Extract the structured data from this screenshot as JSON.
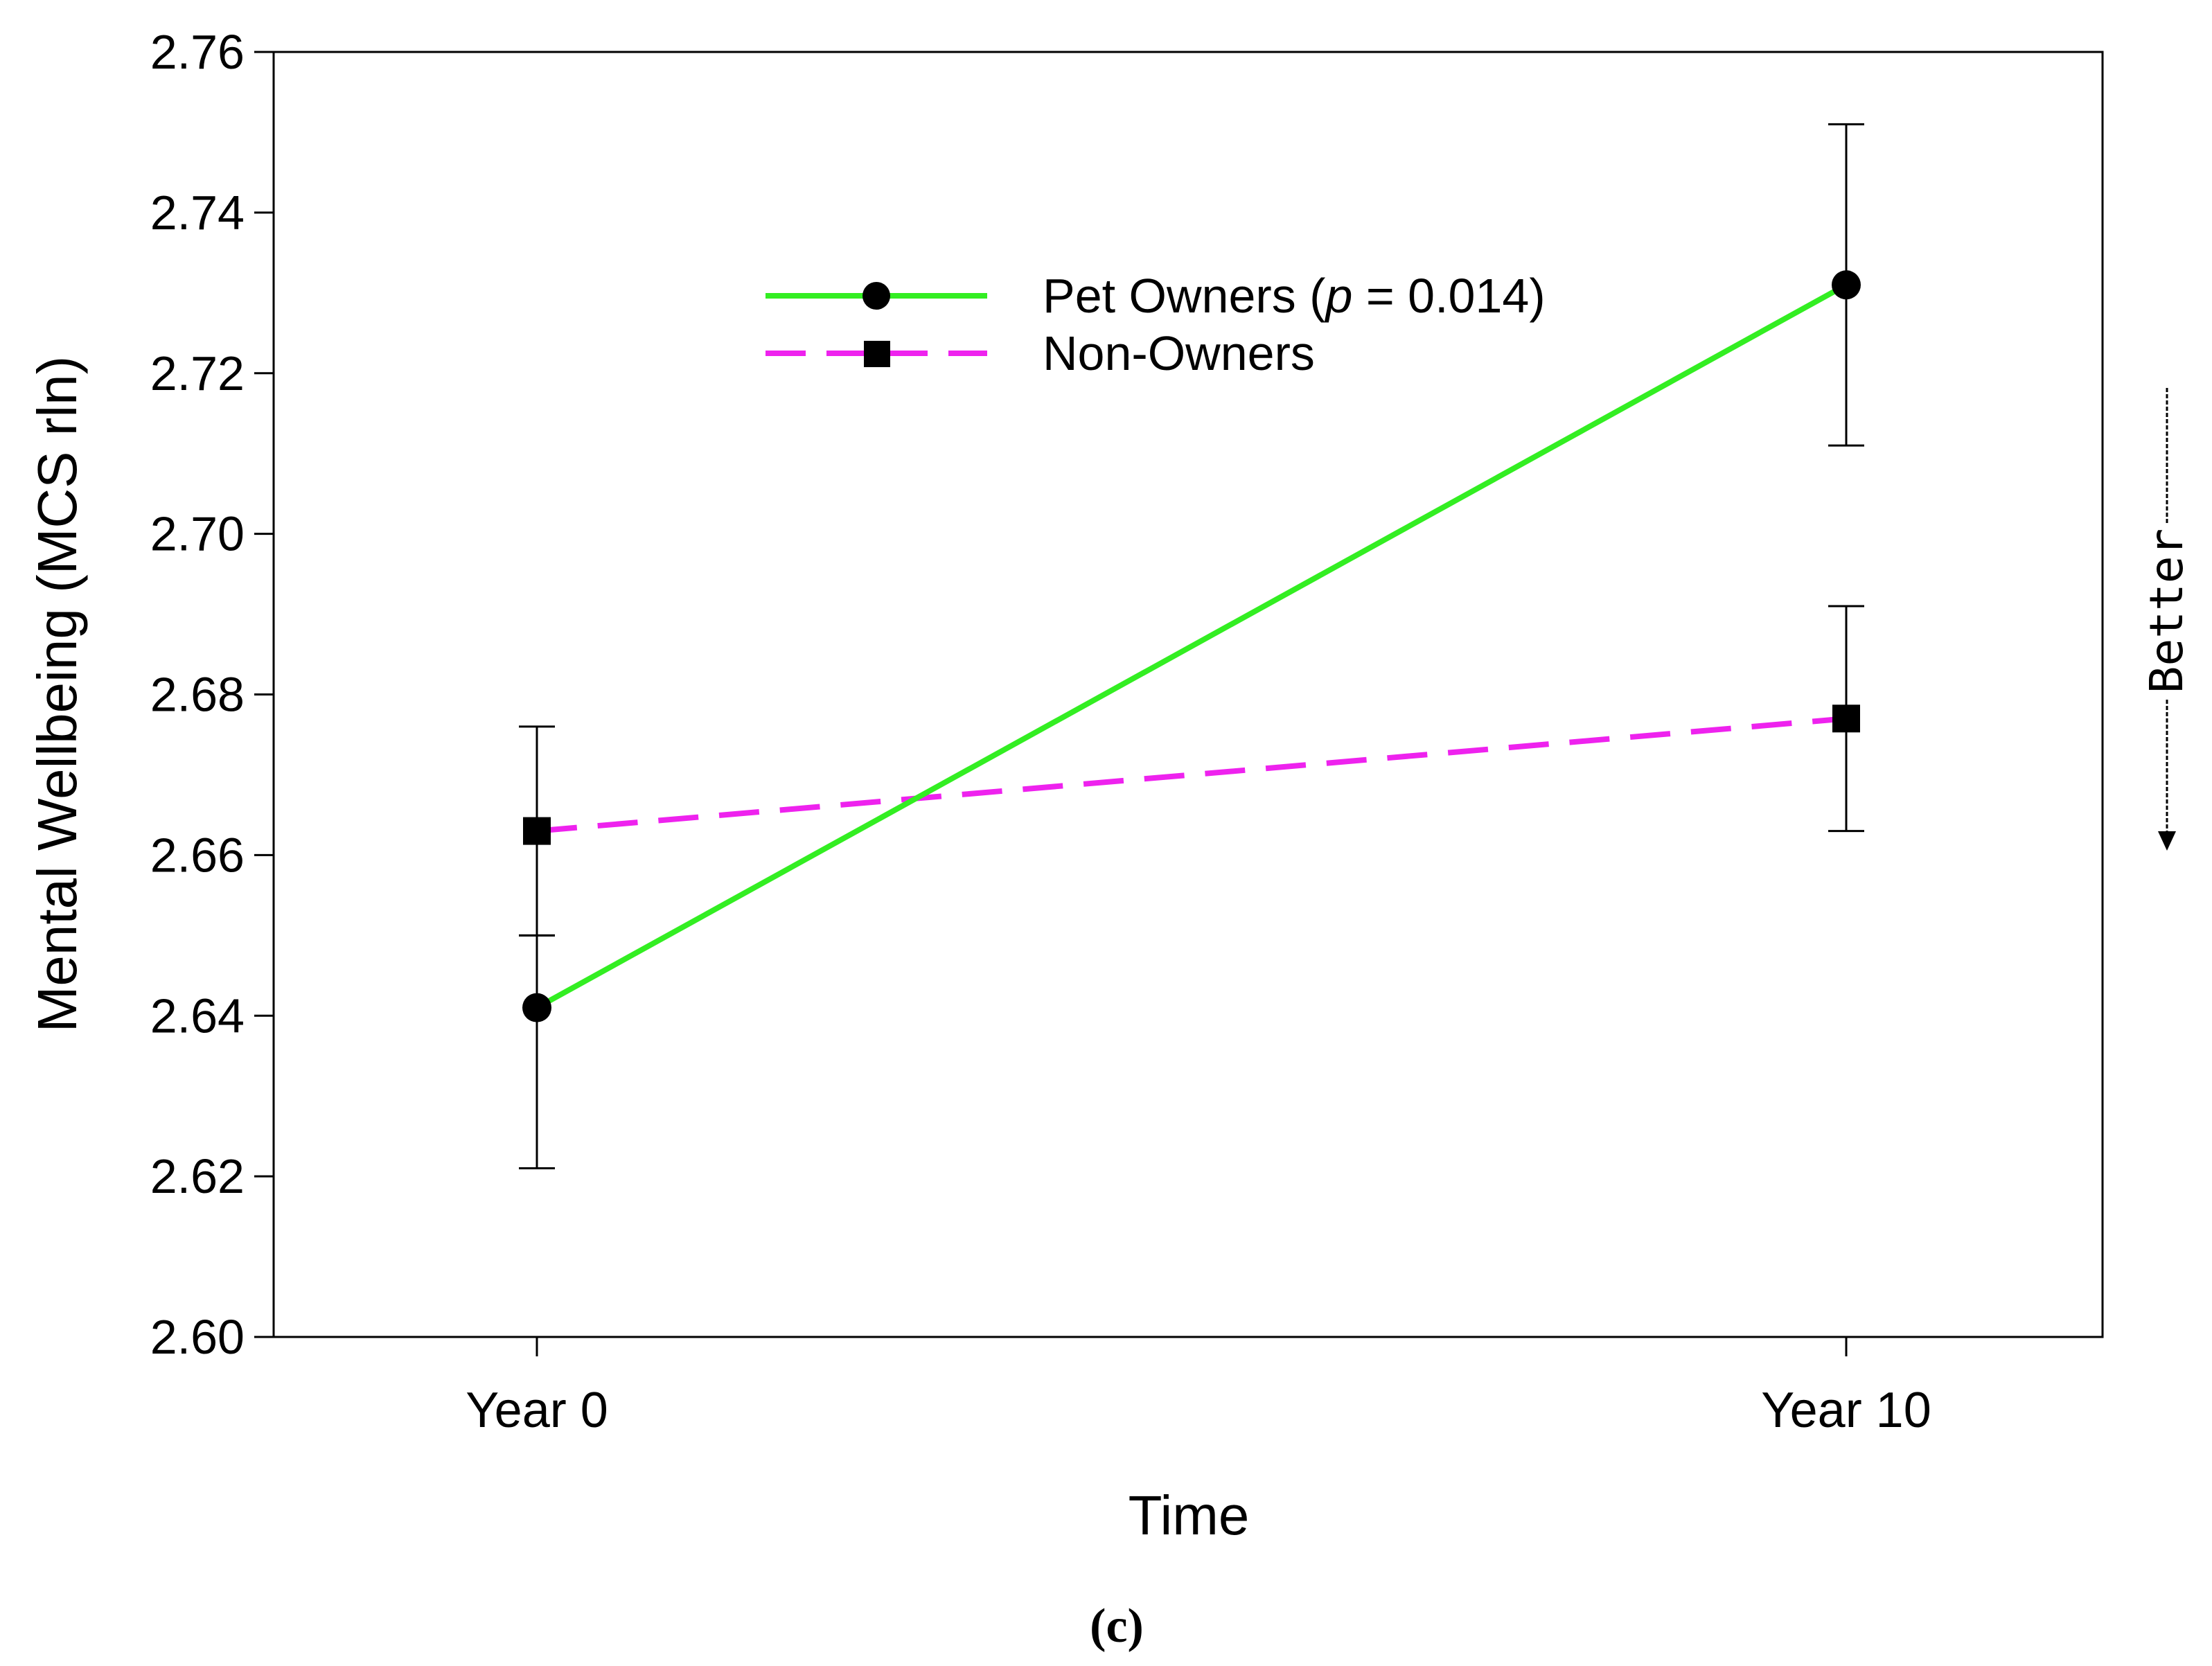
{
  "chart_data": {
    "type": "line",
    "title": "",
    "panel_label": "(c)",
    "xlabel": "Time",
    "ylabel": "Mental Wellbeing (MCS rln)",
    "categories": [
      "Year 0",
      "Year 10"
    ],
    "ylim": [
      2.6,
      2.76
    ],
    "yticks": [
      2.6,
      2.62,
      2.64,
      2.66,
      2.68,
      2.7,
      2.72,
      2.74,
      2.76
    ],
    "ytick_labels": [
      "2.60",
      "2.62",
      "2.64",
      "2.66",
      "2.68",
      "2.70",
      "2.72",
      "2.74",
      "2.76"
    ],
    "grid": false,
    "legend_position": "top-center",
    "series": [
      {
        "name": "Pet Owners",
        "legend_prefix": "Pet Owners (",
        "legend_p": "p",
        "legend_suffix": " = 0.014)",
        "color": "#33ee22",
        "line_style": "solid",
        "marker": "circle",
        "values": [
          2.641,
          2.731
        ],
        "error_low": [
          2.621,
          2.711
        ],
        "error_high": [
          2.65,
          2.751
        ]
      },
      {
        "name": "Non-Owners",
        "color": "#ee22ee",
        "line_style": "dashed",
        "marker": "square",
        "values": [
          2.663,
          2.677
        ],
        "error_low": [
          2.65,
          2.663
        ],
        "error_high": [
          2.676,
          2.691
        ]
      }
    ],
    "side_annotation": "Better"
  }
}
